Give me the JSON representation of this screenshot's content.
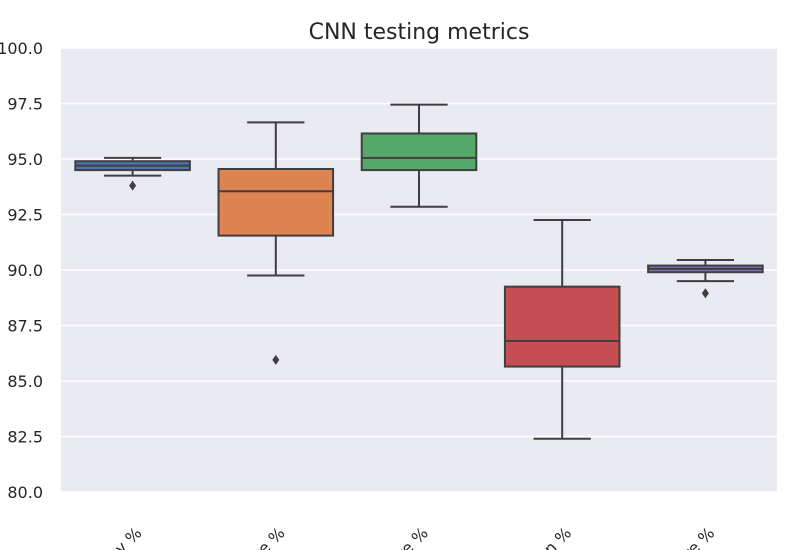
{
  "chart_data": {
    "type": "box",
    "title": "CNN testing metrics",
    "ylim": [
      80.0,
      100.0
    ],
    "yticks": [
      "80.0",
      "82.5",
      "85.0",
      "87.5",
      "90.0",
      "92.5",
      "95.0",
      "97.5",
      "100.0"
    ],
    "grid": true,
    "categories": [
      "racy %",
      "rate %",
      "rate %",
      "sion %",
      "ore %"
    ],
    "boxes": [
      {
        "color": "#4c72b0",
        "whisker_low": 94.25,
        "q1": 94.5,
        "median": 94.7,
        "q3": 94.9,
        "whisker_high": 95.05,
        "outliers": [
          93.8
        ]
      },
      {
        "color": "#dd8452",
        "whisker_low": 89.75,
        "q1": 91.55,
        "median": 93.55,
        "q3": 94.55,
        "whisker_high": 96.65,
        "outliers": [
          85.95
        ]
      },
      {
        "color": "#55a868",
        "whisker_low": 92.85,
        "q1": 94.5,
        "median": 95.05,
        "q3": 96.15,
        "whisker_high": 97.45,
        "outliers": []
      },
      {
        "color": "#c44e52",
        "whisker_low": 82.4,
        "q1": 85.65,
        "median": 86.8,
        "q3": 89.25,
        "whisker_high": 92.25,
        "outliers": []
      },
      {
        "color": "#8172b3",
        "whisker_low": 89.5,
        "q1": 89.9,
        "median": 90.05,
        "q3": 90.2,
        "whisker_high": 90.45,
        "outliers": [
          88.95
        ]
      }
    ]
  }
}
